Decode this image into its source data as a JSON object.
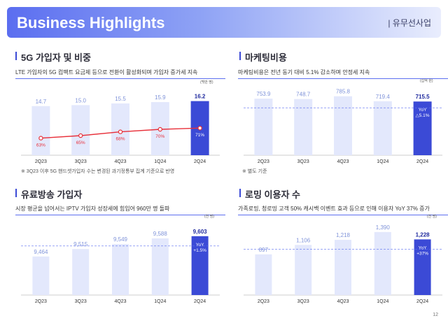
{
  "header": {
    "title": "Business Highlights",
    "section": "| 유무선사업"
  },
  "page_number": "12",
  "panels": {
    "subs_5g": {
      "title": "5G 가입자 및 비중",
      "description": "LTE 가입자의 5G 컴팩트 요금제 등으로 전환이 활성화되며 가입자 증가세 지속",
      "unit": "(백만 명)",
      "footnote": "※ 3Q23 이후 5G 핸드셋가입자 수는 변경된 과기정통부 집계 기준으로 반영"
    },
    "marketing": {
      "title": "마케팅비용",
      "description": "마케팅비용은 전년 동기 대비 5.1% 감소하며 안정세 지속",
      "unit": "(십억 원)",
      "footnote": "※ 별도 기준"
    },
    "iptv": {
      "title": "유료방송 가입자",
      "description": "시장 평균을 넘어서는 IPTV 가입자 성장세에 힘입어 960만 명 돌파",
      "unit": "(천 명)"
    },
    "roaming": {
      "title": "로밍 이용자 수",
      "description": "가족로밍, 청로밍 고객 50% 캐시백 이벤트 효과 등으로 인해 이용자 YoY 37% 증가",
      "unit": "(천 명)"
    }
  },
  "chart_data": [
    {
      "type": "bar",
      "categories": [
        "2Q23",
        "3Q23",
        "4Q23",
        "1Q24",
        "2Q24"
      ],
      "values": [
        14.7,
        15.0,
        15.5,
        15.9,
        16.2
      ],
      "value_labels": [
        "14.7",
        "15.0",
        "15.5",
        "15.9",
        "16.2"
      ],
      "line_series": {
        "values": [
          63,
          65,
          68,
          70,
          71
        ],
        "labels": [
          "63%",
          "65%",
          "68%",
          "70%",
          "71%"
        ]
      },
      "colors": {
        "bar": "#e3e8fc",
        "highlight": "#3b4ad6",
        "line": "#e8303a"
      },
      "ylim": [
        0,
        18
      ]
    },
    {
      "type": "bar",
      "categories": [
        "2Q23",
        "3Q23",
        "4Q23",
        "1Q24",
        "2Q24"
      ],
      "values": [
        753.9,
        748.7,
        785.8,
        719.4,
        715.5
      ],
      "value_labels": [
        "753.9",
        "748.7",
        "785.8",
        "719.4",
        "715.5"
      ],
      "annotation": {
        "label": "YoY",
        "value": "△5.1%"
      },
      "colors": {
        "bar": "#e3e8fc",
        "highlight": "#3b4ad6"
      },
      "ylim": [
        0,
        820
      ]
    },
    {
      "type": "bar",
      "categories": [
        "2Q23",
        "3Q23",
        "4Q23",
        "1Q24",
        "2Q24"
      ],
      "values": [
        9464,
        9515,
        9549,
        9588,
        9603
      ],
      "value_labels": [
        "9,464",
        "9,515",
        "9,549",
        "9,588",
        "9,603"
      ],
      "annotation": {
        "label": "YoY",
        "value": "+1.5%"
      },
      "colors": {
        "bar": "#e3e8fc",
        "highlight": "#3b4ad6"
      },
      "ylim": [
        9200,
        9650
      ]
    },
    {
      "type": "bar",
      "categories": [
        "2Q23",
        "3Q23",
        "4Q23",
        "1Q24",
        "2Q24"
      ],
      "values": [
        897,
        1106,
        1218,
        1390,
        1228
      ],
      "value_labels": [
        "897",
        "1,106",
        "1,218",
        "1,390",
        "1,228"
      ],
      "annotation": {
        "label": "YoY",
        "value": "+37%"
      },
      "colors": {
        "bar": "#e3e8fc",
        "highlight": "#3b4ad6"
      },
      "ylim": [
        0,
        1450
      ]
    }
  ]
}
